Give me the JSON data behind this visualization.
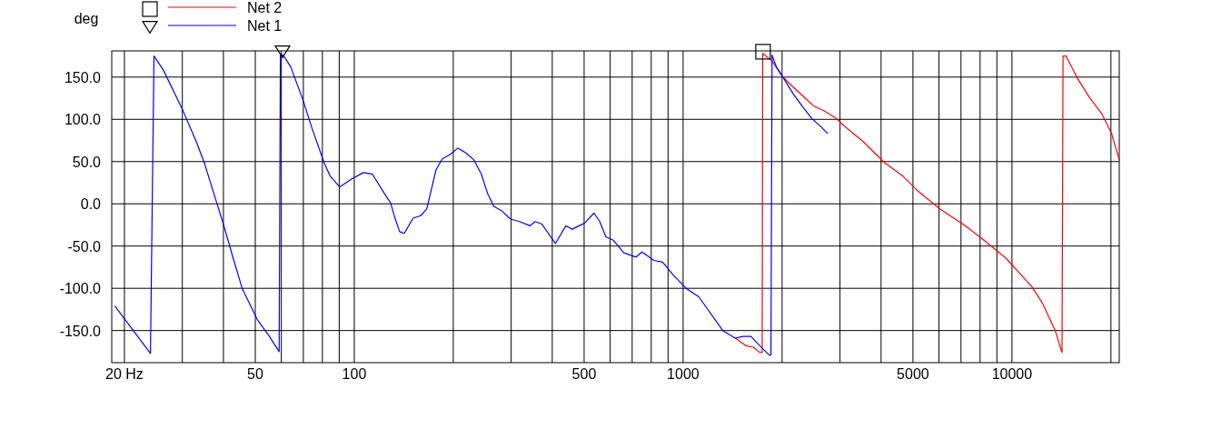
{
  "chart_data": {
    "type": "line",
    "ylabel": "deg",
    "log": "x",
    "grid": true,
    "legend": "top left",
    "xlim": [
      18.3,
      21200
    ],
    "ylim": [
      -188,
      181
    ],
    "xticks": [
      {
        "value": 20,
        "label": "20 Hz"
      },
      {
        "value": 30,
        "label": null
      },
      {
        "value": 40,
        "label": null
      },
      50,
      {
        "value": 60,
        "label": null
      },
      {
        "value": 70,
        "label": null
      },
      {
        "value": 80,
        "label": null
      },
      {
        "value": 90,
        "label": null
      },
      100,
      {
        "value": 200,
        "label": null
      },
      {
        "value": 300,
        "label": null
      },
      {
        "value": 400,
        "label": null
      },
      500,
      {
        "value": 600,
        "label": null
      },
      {
        "value": 700,
        "label": null
      },
      {
        "value": 800,
        "label": null
      },
      {
        "value": 900,
        "label": null
      },
      1000,
      {
        "value": 2000,
        "label": null
      },
      {
        "value": 3000,
        "label": null
      },
      {
        "value": 4000,
        "label": null
      },
      5000,
      {
        "value": 6000,
        "label": null
      },
      {
        "value": 7000,
        "label": null
      },
      {
        "value": 8000,
        "label": null
      },
      {
        "value": 9000,
        "label": null
      },
      10000,
      {
        "value": 20000,
        "label": null
      }
    ],
    "yticks": [
      {
        "value": 150,
        "label": "150.0"
      },
      {
        "value": 100,
        "label": "100.0"
      },
      {
        "value": 50,
        "label": "50.0"
      },
      {
        "value": 0,
        "label": "0.0"
      },
      {
        "value": -50,
        "label": "-50.0"
      },
      {
        "value": -100,
        "label": "-100.0"
      },
      {
        "value": -150,
        "label": "-150.0"
      }
    ],
    "series": [
      {
        "name": "Net 2",
        "color": "#ff0000",
        "x": [
          1441,
          1555,
          1640,
          1711,
          1740,
          1746,
          1864,
          2005,
          2110,
          2309,
          2490,
          2687,
          2921,
          3095,
          3522,
          4092,
          4654,
          5184,
          6033,
          7220,
          8405,
          9570,
          10535,
          11490,
          12400,
          13540,
          14200,
          14300,
          14600,
          15850,
          17200,
          18800,
          20100,
          21200
        ],
        "values": [
          -159,
          -168,
          -170,
          -176,
          -176,
          178,
          169,
          151,
          142,
          128,
          116,
          110,
          101,
          92,
          74,
          49,
          33,
          15,
          -6,
          -26,
          -46,
          -64,
          -82,
          -98,
          -118,
          -150,
          -176,
          175,
          175,
          148,
          126,
          106,
          83,
          52
        ]
      },
      {
        "name": "Net 1",
        "color": "#0000ff",
        "x": [
          18.7,
          24.0,
          24.6,
          26.3,
          30,
          33.2,
          35.1,
          37.7,
          40,
          42.8,
          45.6,
          50.7,
          55.2,
          59.1,
          59.6,
          60.8,
          64.1,
          69.8,
          74.3,
          80.9,
          84.4,
          90.3,
          97.9,
          106.6,
          113.6,
          123.6,
          129,
          133,
          137.4,
          141.9,
          151,
          159.4,
          166.1,
          177.2,
          184.9,
          195.2,
          206.6,
          219,
          231,
          243.6,
          254.4,
          265.6,
          280.2,
          298.6,
          318,
          342,
          355,
          372,
          409,
          440,
          460,
          501,
          536,
          558,
          582,
          613,
          660,
          719,
          750,
          815,
          866,
          932,
          1021,
          1116,
          1320,
          1441,
          1522,
          1608,
          1711,
          1828,
          1850,
          1864,
          1922,
          2026,
          2163,
          2309,
          2463,
          2629,
          2755
        ],
        "values": [
          -121,
          -177,
          175,
          158,
          112,
          72,
          47,
          8,
          -24,
          -64,
          -100,
          -137,
          -157,
          -175,
          176,
          176,
          162,
          123,
          90,
          49,
          33,
          20,
          29,
          37,
          35,
          12,
          1,
          -17,
          -33,
          -35,
          -17,
          -14,
          -6,
          40,
          53,
          58,
          66,
          60,
          52,
          35,
          12,
          -3,
          -8,
          -18,
          -21,
          -26,
          -21,
          -24,
          -47,
          -26,
          -30,
          -23,
          -11,
          -21,
          -39,
          -43,
          -58,
          -63,
          -57,
          -67,
          -69,
          -84,
          -100,
          -110,
          -150,
          -159,
          -157,
          -157,
          -168,
          -179,
          -179,
          176,
          162,
          148,
          130,
          115,
          101,
          91,
          83
        ]
      },
      {
        "type": "scatter",
        "color": "#000000",
        "marker": "square",
        "x": [
          1750
        ],
        "values": [
          180
        ]
      },
      {
        "type": "scatter",
        "color": "#000000",
        "marker": "triangle",
        "x": [
          60.5
        ],
        "values": [
          180
        ]
      }
    ]
  }
}
